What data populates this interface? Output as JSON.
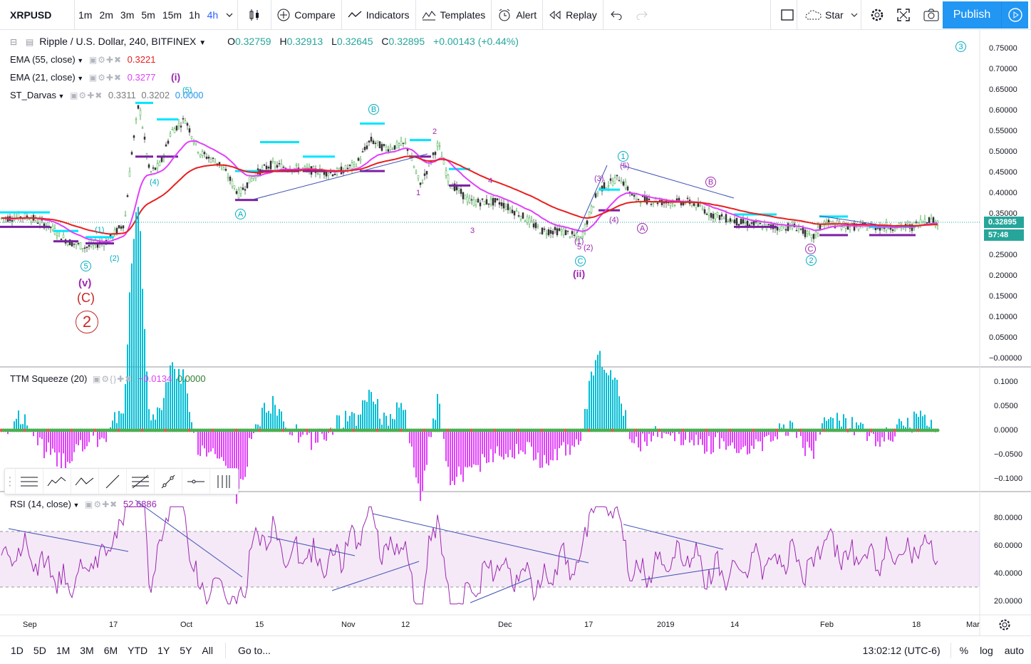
{
  "toolbar": {
    "symbol": "XRPUSD",
    "intervals": [
      "1m",
      "2m",
      "3m",
      "5m",
      "15m",
      "1h",
      "4h"
    ],
    "compare": "Compare",
    "indicators": "Indicators",
    "templates": "Templates",
    "alert": "Alert",
    "replay": "Replay",
    "layout_name": "Star",
    "publish": "Publish"
  },
  "legend": {
    "title": "Ripple / U.S. Dollar, 240, BITFINEX",
    "open_label": "O",
    "open": "0.32759",
    "high_label": "H",
    "high": "0.32913",
    "low_label": "L",
    "low": "0.32645",
    "close_label": "C",
    "close": "0.32895",
    "change": "+0.00143 (+0.44%)",
    "ema55_name": "EMA (55, close)",
    "ema55_value": "0.3221",
    "ema21_name": "EMA (21, close)",
    "ema21_value": "0.3277",
    "darvas_name": "ST_Darvas",
    "darvas_v1": "0.3311",
    "darvas_v2": "0.3202",
    "darvas_v3": "0.0000",
    "ttm_name": "TTM Squeeze (20)",
    "ttm_v1": "−0.0134",
    "ttm_v2": "0.0000",
    "rsi_name": "RSI (14, close)",
    "rsi_value": "52.6886"
  },
  "price_axis": [
    "0.75000",
    "0.70000",
    "0.65000",
    "0.60000",
    "0.55000",
    "0.50000",
    "0.45000",
    "0.40000",
    "0.35000",
    "0.30000",
    "0.25000",
    "0.20000",
    "0.15000",
    "0.10000",
    "0.05000",
    "−0.00000"
  ],
  "current_price": "0.32895",
  "countdown": "57:48",
  "ttm_axis": [
    "0.1000",
    "0.0500",
    "0.0000",
    "−0.0500",
    "−0.1000"
  ],
  "rsi_axis": [
    "80.0000",
    "60.0000",
    "40.0000",
    "20.0000"
  ],
  "time_axis": [
    "Sep",
    "17",
    "Oct",
    "15",
    "Nov",
    "12",
    "Dec",
    "17",
    "2019",
    "14",
    "Feb",
    "18",
    "Mar"
  ],
  "bottom": {
    "ranges": [
      "1D",
      "5D",
      "1M",
      "3M",
      "6M",
      "YTD",
      "1Y",
      "5Y",
      "All"
    ],
    "goto": "Go to...",
    "clock": "13:02:12 (UTC-6)",
    "percent": "%",
    "log": "log",
    "auto": "auto"
  },
  "wave_labels": {
    "l5_circle": "5",
    "l1": "(1)",
    "l2": "(2)",
    "l4": "(4)",
    "l5b": "(5)",
    "li": "(i)",
    "la": "A",
    "lb": "B",
    "n1": "1",
    "n2": "2",
    "n3": "3",
    "n4": "4",
    "n5": "5",
    "lc": "C",
    "lii": "(ii)",
    "lii2": "(2)",
    "l1b": "(1)",
    "l3b": "(3)",
    "l4b": "(4)",
    "l5c": "(5)",
    "one_circle": "1",
    "a2": "A",
    "b2": "B",
    "c2": "C",
    "two_circle": "2",
    "three_circle": "3",
    "lv": "(v)",
    "lC": "(C)",
    "big2": "2"
  },
  "colors": {
    "ema55": "#e91e1e",
    "ema21": "#e040fb",
    "up": "#26a69a",
    "down": "#ef5350",
    "darvas_top": "#00e5ff",
    "darvas_bottom": "#7b1fa2",
    "rsi": "#9c27b0",
    "trend": "#3f51b5"
  }
}
